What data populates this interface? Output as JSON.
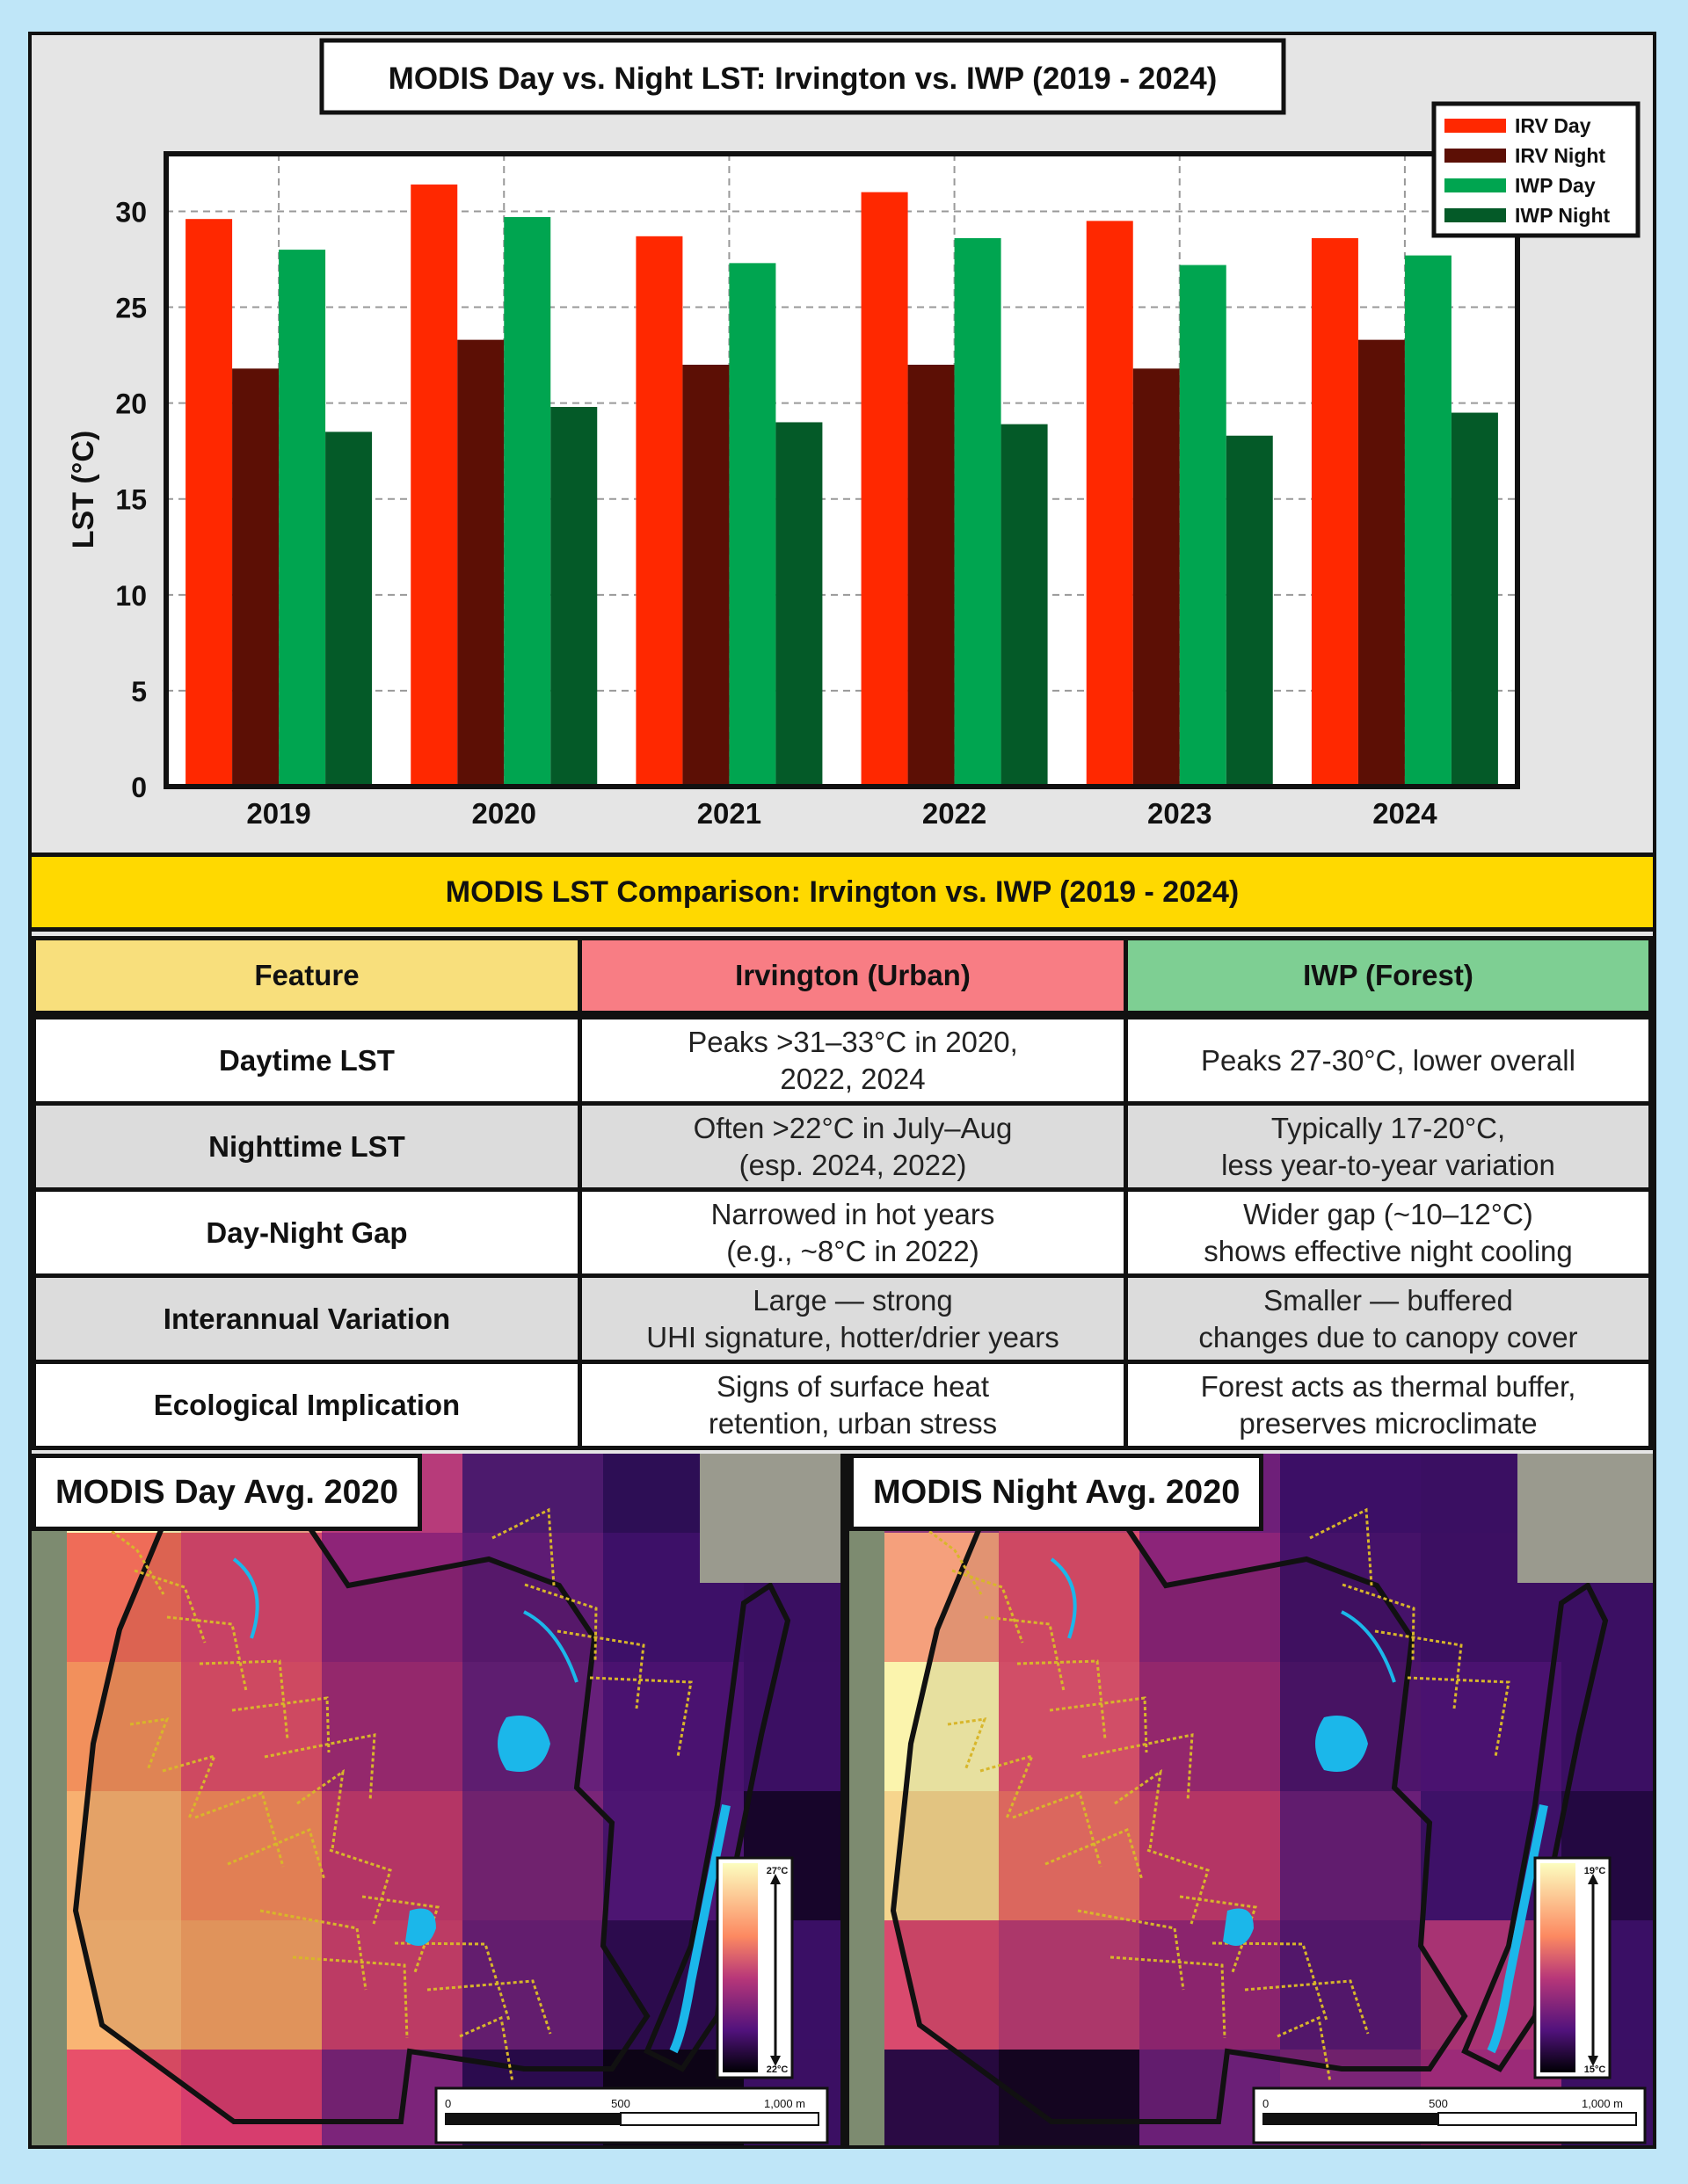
{
  "chart_data": {
    "type": "bar",
    "title": "MODIS Day vs. Night LST: Irvington vs. IWP (2019 - 2024)",
    "xlabel": "",
    "ylabel": "LST (°C)",
    "categories": [
      "2019",
      "2020",
      "2021",
      "2022",
      "2023",
      "2024"
    ],
    "ylim": [
      0,
      33
    ],
    "yticks": [
      0,
      5,
      10,
      15,
      20,
      25,
      30
    ],
    "grid": true,
    "legend_position": "top-right",
    "series": [
      {
        "name": "IRV Day",
        "color": "#ff2800",
        "values": [
          29.6,
          31.4,
          28.7,
          31.0,
          29.5,
          28.6
        ]
      },
      {
        "name": "IRV Night",
        "color": "#5c0f05",
        "values": [
          21.8,
          23.3,
          22.0,
          22.0,
          21.8,
          23.3
        ]
      },
      {
        "name": "IWP Day",
        "color": "#00a550",
        "values": [
          28.0,
          29.7,
          27.3,
          28.6,
          27.2,
          27.7
        ]
      },
      {
        "name": "IWP Night",
        "color": "#045a28",
        "values": [
          18.5,
          19.8,
          19.0,
          18.9,
          18.3,
          19.5
        ]
      }
    ]
  },
  "table": {
    "title": "MODIS LST Comparison: Irvington vs. IWP (2019 - 2024)",
    "headers": [
      "Feature",
      "Irvington (Urban)",
      "IWP (Forest)"
    ],
    "header_colors": [
      "#f8df7c",
      "#f87d84",
      "#7ecf93"
    ],
    "rows": [
      {
        "feature": "Daytime LST",
        "irvington": "Peaks >31–33°C in 2020,\n2022, 2024",
        "iwp": "Peaks 27-30°C, lower overall"
      },
      {
        "feature": "Nighttime LST",
        "irvington": "Often >22°C in July–Aug\n(esp. 2024, 2022)",
        "iwp": "Typically 17-20°C,\nless year-to-year variation"
      },
      {
        "feature": "Day-Night Gap",
        "irvington": "Narrowed in hot years\n(e.g., ~8°C in 2022)",
        "iwp": "Wider gap (~10–12°C)\nshows effective night cooling"
      },
      {
        "feature": "Interannual Variation",
        "irvington": "Large — strong\nUHI signature, hotter/drier years",
        "iwp": "Smaller — buffered\nchanges due to canopy cover"
      },
      {
        "feature": "Ecological Implication",
        "irvington": "Signs of surface heat\nretention, urban stress",
        "iwp": "Forest acts as thermal buffer,\npreserves microclimate"
      }
    ]
  },
  "maps": {
    "day": {
      "title": "MODIS Day Avg. 2020",
      "legend_max": "27°C",
      "legend_min": "22°C"
    },
    "night": {
      "title": "MODIS Night Avg. 2020",
      "legend_max": "19°C",
      "legend_min": "15°C"
    },
    "scale_labels": [
      "0",
      "500",
      "1,000 m"
    ]
  },
  "colors": {
    "background": "#bfe6f8",
    "panel": "#e5e5e5",
    "table_banner": "#ffd900",
    "row_alt": "#dcdcdc"
  }
}
